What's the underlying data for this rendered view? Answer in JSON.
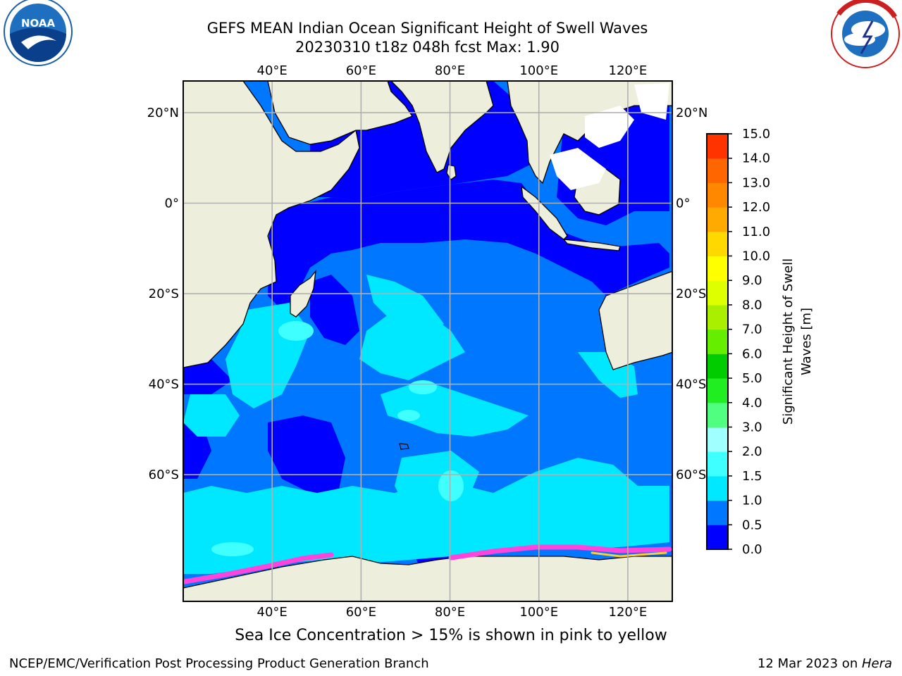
{
  "title_line1": "GEFS MEAN Indian Ocean Significant Height of Swell Waves",
  "title_line2": "20230310 t18z 048h fcst   Max: 1.90",
  "logos": {
    "left": {
      "name": "NOAA",
      "text": "NOAA",
      "ring_text": "NATIONAL OCEANIC AND ATMOSPHERIC ADMINISTRATION · U.S. DEPARTMENT OF COMMERCE"
    },
    "right": {
      "name": "National Weather Service",
      "ring_text": "NATIONAL WEATHER SERVICE"
    }
  },
  "map": {
    "lon_range": [
      20,
      130
    ],
    "lat_range": [
      -88,
      27
    ],
    "lon_ticks": [
      "40°E",
      "60°E",
      "80°E",
      "100°E",
      "120°E"
    ],
    "lat_ticks_left": [
      "20°N",
      "0°",
      "20°S",
      "40°S",
      "60°S"
    ],
    "lat_ticks_right": [
      "20°N",
      "0°",
      "20°S",
      "40°S",
      "60°S"
    ],
    "grid": true,
    "land_color": "#eeeedc",
    "ocean_base_color": "#0077ff"
  },
  "colorbar": {
    "label_line1": "Significant Height of Swell",
    "label_line2": "Waves [m]",
    "ticks": [
      "0.0",
      "0.5",
      "1.0",
      "1.5",
      "2.0",
      "3.0",
      "4.0",
      "5.0",
      "6.0",
      "7.0",
      "8.0",
      "9.0",
      "10.0",
      "11.0",
      "12.0",
      "13.0",
      "14.0",
      "15.0"
    ],
    "colors": [
      "#0000ff",
      "#0077ff",
      "#00e8ff",
      "#40ffff",
      "#a0ffff",
      "#50ff80",
      "#20ee20",
      "#00cc00",
      "#66ee00",
      "#aaee00",
      "#ddff00",
      "#ffff00",
      "#ffd800",
      "#ffaa00",
      "#ff8800",
      "#ff6600",
      "#ff3300",
      "#ff0000"
    ]
  },
  "sea_ice_note": "Sea Ice Concentration > 15% is shown in pink to yellow",
  "footer_left": "NCEP/EMC/Verification Post Processing Product Generation Branch",
  "footer_right_date": "12 Mar 2023 on ",
  "footer_right_host": "Hera"
}
